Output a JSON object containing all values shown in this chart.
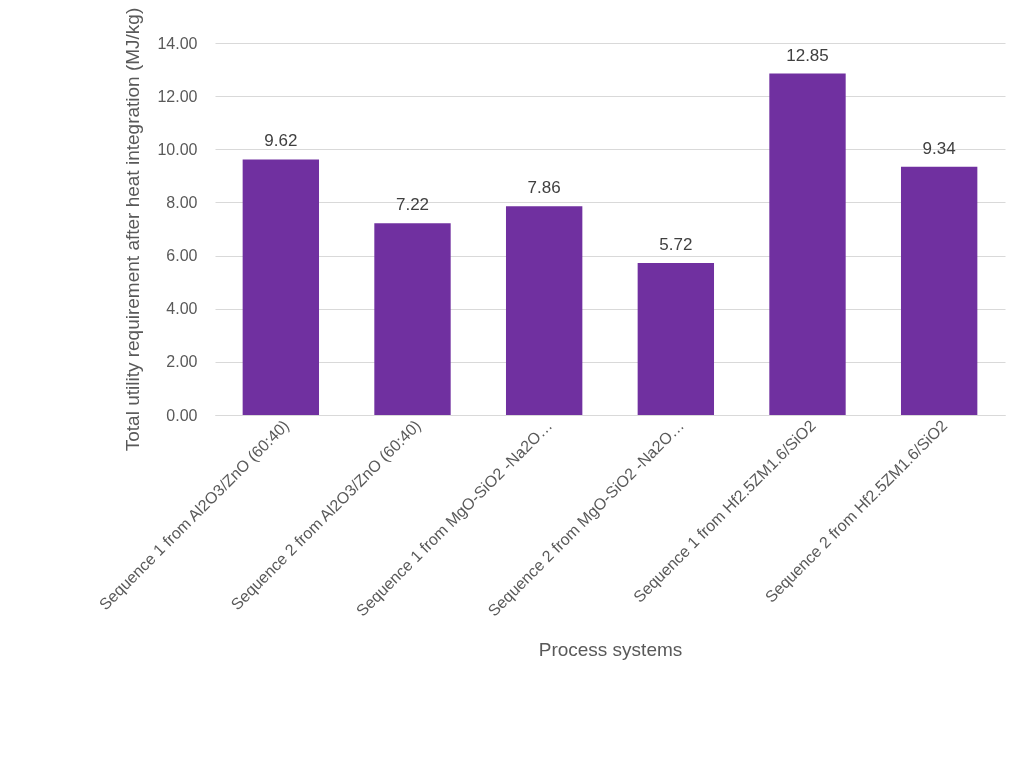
{
  "chart_data": {
    "type": "bar",
    "xlabel": "Process systems",
    "ylabel": "Total utility requirement after heat integration (MJ/kg)",
    "categories": [
      "Sequence 1 from Al2O3/ZnO (60:40)",
      "Sequence 2 from Al2O3/ZnO (60:40)",
      "Sequence 1 from MgO-SiO2 -Na2O…",
      "Sequence 2 from MgO-SiO2 -Na2O…",
      "Sequence 1 from Hf2.5ZM1.6/SiO2",
      "Sequence 2 from Hf2.5ZM1.6/SiO2"
    ],
    "values": [
      9.62,
      7.22,
      7.86,
      5.72,
      12.85,
      9.34
    ],
    "color": "#7030a0",
    "ylim": [
      0,
      14
    ],
    "yticks": [
      {
        "value": 0,
        "label": "0.00"
      },
      {
        "value": 2,
        "label": "2.00"
      },
      {
        "value": 4,
        "label": "4.00"
      },
      {
        "value": 6,
        "label": "6.00"
      },
      {
        "value": 8,
        "label": "8.00"
      },
      {
        "value": 10,
        "label": "10.00"
      },
      {
        "value": 12,
        "label": "12.00"
      },
      {
        "value": 14,
        "label": "14.00"
      }
    ],
    "grid": true,
    "data_labels": true
  }
}
